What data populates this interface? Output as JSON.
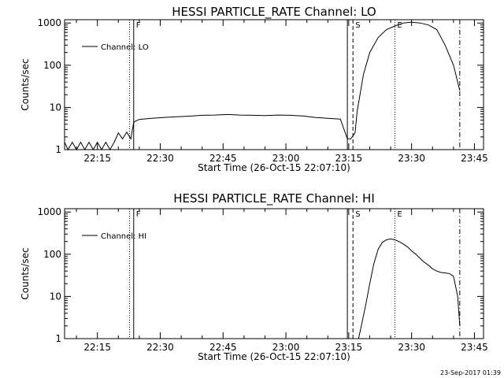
{
  "chart_data": [
    {
      "type": "line",
      "title": "HESSI PARTICLE_RATE Channel: LO",
      "xlabel": "Start Time (26-Oct-15 22:07:10)",
      "ylabel": "Counts/sec",
      "y_scale": "log",
      "ylim": [
        1,
        1200
      ],
      "xlim": [
        "22:07:10",
        "23:47:10"
      ],
      "x_ticks": [
        "22:15",
        "22:30",
        "22:45",
        "23:00",
        "23:15",
        "23:30",
        "23:45"
      ],
      "y_ticks": [
        "1",
        "10",
        "100",
        "1000"
      ],
      "legend": {
        "entries": [
          "Channel: LO"
        ],
        "placement": "top-left"
      },
      "markers": [
        {
          "label": "",
          "time": "22:22:40",
          "style": "dotted"
        },
        {
          "label": "F",
          "time": "22:23:40",
          "style": "solid"
        },
        {
          "label": "",
          "time": "23:14:40",
          "style": "solid"
        },
        {
          "label": "S",
          "time": "23:16:00",
          "style": "dashed"
        },
        {
          "label": "E",
          "time": "23:26:00",
          "style": "dotted"
        },
        {
          "label": "",
          "time": "23:41:30",
          "style": "dashdot"
        }
      ],
      "series": [
        {
          "name": "Channel: LO",
          "x": [
            "22:07:10",
            "22:08:00",
            "22:09:00",
            "22:10:00",
            "22:11:00",
            "22:12:00",
            "22:13:00",
            "22:14:00",
            "22:15:00",
            "22:16:00",
            "22:17:00",
            "22:18:00",
            "22:19:00",
            "22:20:00",
            "22:21:00",
            "22:22:00",
            "22:23:00",
            "22:23:40",
            "22:25:00",
            "22:28:00",
            "22:31:00",
            "22:34:00",
            "22:37:00",
            "22:40:00",
            "22:43:00",
            "22:46:00",
            "22:49:00",
            "22:52:00",
            "22:55:00",
            "22:58:00",
            "23:01:00",
            "23:04:00",
            "23:07:00",
            "23:10:00",
            "23:13:00",
            "23:14:40",
            "23:15:30",
            "23:16:30",
            "23:17:00",
            "23:18:30",
            "23:20:00",
            "23:22:00",
            "23:24:00",
            "23:26:00",
            "23:28:00",
            "23:30:00",
            "23:32:00",
            "23:34:00",
            "23:36:00",
            "23:38:00",
            "23:40:00",
            "23:41:30"
          ],
          "values": [
            1.5,
            1.0,
            1.5,
            1.0,
            1.5,
            1.0,
            1.5,
            1.0,
            1.5,
            1.0,
            1.5,
            1.0,
            1.5,
            2.5,
            1.8,
            2.6,
            1.8,
            4.5,
            5.2,
            5.5,
            5.8,
            6.0,
            6.2,
            6.5,
            6.6,
            6.8,
            6.6,
            6.5,
            6.4,
            6.6,
            6.5,
            6.3,
            5.8,
            5.5,
            5.3,
            1.8,
            1.8,
            2.5,
            8,
            60,
            200,
            450,
            700,
            850,
            1000,
            1050,
            1000,
            900,
            700,
            300,
            100,
            25
          ]
        }
      ]
    },
    {
      "type": "line",
      "title": "HESSI PARTICLE_RATE Channel: HI",
      "xlabel": "Start Time (26-Oct-15 22:07:10)",
      "ylabel": "Counts/sec",
      "y_scale": "log",
      "ylim": [
        1,
        1200
      ],
      "xlim": [
        "22:07:10",
        "23:47:10"
      ],
      "x_ticks": [
        "22:15",
        "22:30",
        "22:45",
        "23:00",
        "23:15",
        "23:30",
        "23:45"
      ],
      "y_ticks": [
        "1",
        "10",
        "100",
        "1000"
      ],
      "legend": {
        "entries": [
          "Channel: HI"
        ],
        "placement": "top-left"
      },
      "markers": [
        {
          "label": "",
          "time": "22:22:40",
          "style": "dotted"
        },
        {
          "label": "F",
          "time": "22:23:40",
          "style": "solid"
        },
        {
          "label": "",
          "time": "23:14:40",
          "style": "solid"
        },
        {
          "label": "S",
          "time": "23:16:00",
          "style": "dashed"
        },
        {
          "label": "E",
          "time": "23:26:00",
          "style": "dotted"
        },
        {
          "label": "",
          "time": "23:41:30",
          "style": "dashdot"
        }
      ],
      "series": [
        {
          "name": "Channel: HI",
          "x": [
            "23:17:20",
            "23:18:00",
            "23:19:00",
            "23:20:00",
            "23:21:00",
            "23:22:00",
            "23:23:00",
            "23:24:00",
            "23:25:00",
            "23:26:00",
            "23:27:00",
            "23:28:00",
            "23:29:00",
            "23:30:00",
            "23:31:00",
            "23:32:00",
            "23:33:00",
            "23:34:00",
            "23:35:00",
            "23:36:00",
            "23:37:00",
            "23:38:00",
            "23:39:00",
            "23:40:00",
            "23:41:00",
            "23:41:30"
          ],
          "values": [
            1.0,
            2,
            6,
            20,
            60,
            130,
            190,
            220,
            230,
            220,
            200,
            175,
            150,
            120,
            100,
            80,
            65,
            55,
            45,
            40,
            37,
            36,
            35,
            30,
            10,
            2
          ]
        }
      ]
    }
  ],
  "footer": {
    "timestamp": "23-Sep-2017 01:39"
  }
}
